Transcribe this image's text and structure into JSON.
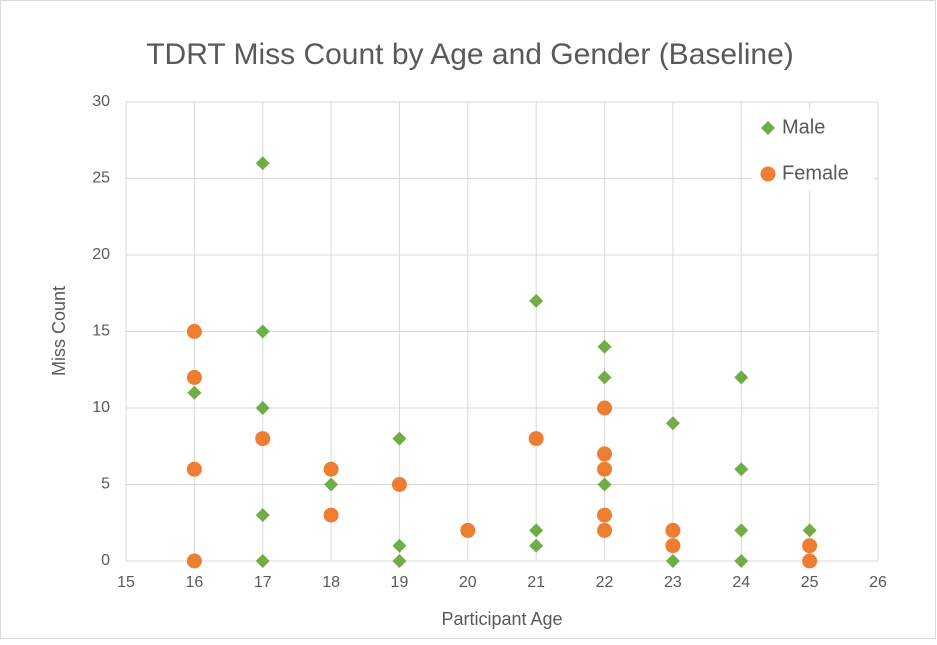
{
  "chart_data": {
    "type": "scatter",
    "title": "TDRT Miss Count by Age and Gender (Baseline)",
    "xlabel": "Participant Age",
    "ylabel": "Miss Count",
    "xlim": [
      15,
      26
    ],
    "xticks": [
      15,
      16,
      17,
      18,
      19,
      20,
      21,
      22,
      23,
      24,
      25,
      26
    ],
    "ylim": [
      0,
      30
    ],
    "yticks": [
      0,
      5,
      10,
      15,
      20,
      25,
      30
    ],
    "grid": true,
    "legend": "top-right",
    "series": [
      {
        "name": "Male",
        "color": "#70ad47",
        "marker": "diamond",
        "x": [
          16,
          17,
          17,
          17,
          17,
          17,
          18,
          19,
          19,
          19,
          21,
          21,
          21,
          22,
          22,
          22,
          23,
          23,
          24,
          24,
          24,
          24,
          25
        ],
        "values": [
          11,
          26,
          15,
          10,
          3,
          0,
          5,
          8,
          1,
          0,
          17,
          2,
          1,
          14,
          12,
          5,
          9,
          0,
          12,
          6,
          2,
          0,
          2
        ]
      },
      {
        "name": "Female",
        "color": "#ed7d31",
        "marker": "circle",
        "x": [
          16,
          16,
          16,
          16,
          17,
          18,
          18,
          19,
          20,
          21,
          22,
          22,
          22,
          22,
          22,
          23,
          23,
          25,
          25
        ],
        "values": [
          15,
          12,
          6,
          0,
          8,
          6,
          3,
          5,
          2,
          8,
          10,
          7,
          6,
          3,
          2,
          2,
          1,
          1,
          0
        ]
      }
    ]
  }
}
